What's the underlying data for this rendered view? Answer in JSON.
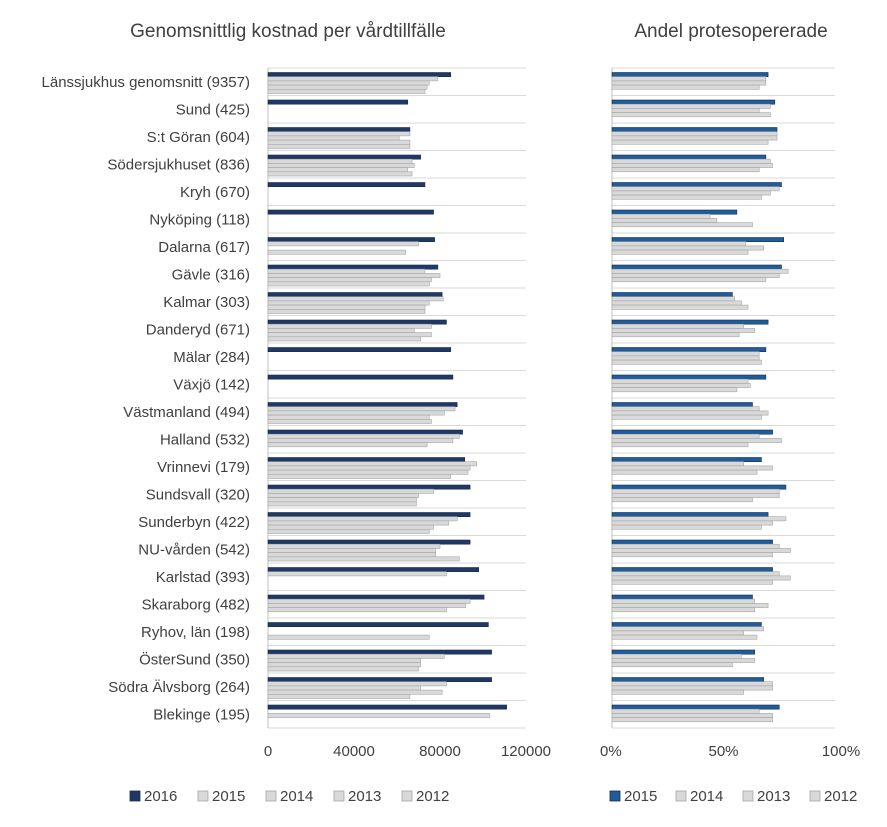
{
  "chart_data": [
    {
      "type": "bar",
      "orientation": "horizontal",
      "title": "Genomsnittlig kostnad per vårdtillfälle",
      "xlabel": "",
      "ylabel": "",
      "xlim": [
        0,
        120000
      ],
      "x_ticks": [
        0,
        40000,
        80000,
        120000
      ],
      "x_tick_labels": [
        "0",
        "40000",
        "80000",
        "120000"
      ],
      "grid": true,
      "legend_position": "bottom",
      "categories": [
        "Länssjukhus genomsnitt (9357)",
        "Sund (425)",
        "S:t Göran (604)",
        "Södersjukhuset (836)",
        "Kryh (670)",
        "Nyköping (118)",
        "Dalarna (617)",
        "Gävle (316)",
        "Kalmar (303)",
        "Danderyd (671)",
        "Mälar (284)",
        "Växjö (142)",
        "Västmanland (494)",
        "Halland (532)",
        "Vrinnevi (179)",
        "Sundsvall (320)",
        "Sunderbyn (422)",
        "NU-vården (542)",
        "Karlstad (393)",
        "Skaraborg (482)",
        "Ryhov, län (198)",
        "ÖsterSund (350)",
        "Södra Älvsborg (264)",
        "Blekinge (195)"
      ],
      "series": [
        {
          "name": "2016",
          "color": "#1f3864",
          "values": [
            85000,
            65000,
            66000,
            71000,
            73000,
            77000,
            77500,
            79000,
            81000,
            83000,
            85000,
            86000,
            88000,
            90500,
            91500,
            94000,
            94000,
            94000,
            98000,
            100500,
            102500,
            104000,
            104000,
            111000
          ]
        },
        {
          "name": "2015",
          "color": "#d9d9d9",
          "values": [
            79000,
            null,
            66000,
            67000,
            null,
            null,
            70000,
            73000,
            81500,
            76000,
            null,
            null,
            87000,
            89000,
            97000,
            77000,
            88000,
            80000,
            83000,
            94000,
            null,
            82000,
            83000,
            null
          ]
        },
        {
          "name": "2014",
          "color": "#d9d9d9",
          "values": [
            75000,
            null,
            61000,
            68000,
            null,
            null,
            null,
            80000,
            75000,
            68000,
            null,
            null,
            82000,
            86000,
            94000,
            70000,
            84000,
            78000,
            null,
            92000,
            null,
            71000,
            71000,
            103000
          ]
        },
        {
          "name": "2013",
          "color": "#d9d9d9",
          "values": [
            74000,
            null,
            66000,
            65000,
            null,
            null,
            64000,
            76000,
            73000,
            76000,
            null,
            null,
            75000,
            74000,
            93000,
            69000,
            77000,
            78000,
            null,
            83000,
            75000,
            71000,
            81000,
            null
          ]
        },
        {
          "name": "2012",
          "color": "#d9d9d9",
          "values": [
            73000,
            null,
            66000,
            67000,
            null,
            null,
            null,
            75000,
            73000,
            71000,
            null,
            null,
            76000,
            null,
            85000,
            69000,
            75000,
            89000,
            null,
            null,
            null,
            70000,
            66000,
            null
          ]
        }
      ]
    },
    {
      "type": "bar",
      "orientation": "horizontal",
      "title": "Andel protesopererade",
      "xlabel": "",
      "ylabel": "",
      "xlim": [
        0,
        100
      ],
      "x_ticks": [
        0,
        50,
        100
      ],
      "x_tick_labels": [
        "0%",
        "50%",
        "100%"
      ],
      "grid": true,
      "legend_position": "bottom",
      "categories": [
        "Länssjukhus genomsnitt (9357)",
        "Sund (425)",
        "S:t Göran (604)",
        "Södersjukhuset (836)",
        "Kryh (670)",
        "Nyköping (118)",
        "Dalarna (617)",
        "Gävle (316)",
        "Kalmar (303)",
        "Danderyd (671)",
        "Mälar (284)",
        "Växjö (142)",
        "Västmanland (494)",
        "Halland (532)",
        "Vrinnevi (179)",
        "Sundsvall (320)",
        "Sunderbyn (422)",
        "NU-vården (542)",
        "Karlstad (393)",
        "Skaraborg (482)",
        "Ryhov, län (198)",
        "ÖsterSund (350)",
        "Södra Älvsborg (264)",
        "Blekinge (195)"
      ],
      "series": [
        {
          "name": "2015",
          "color": "#1f5c99",
          "values": [
            70,
            73,
            74,
            69,
            76,
            56,
            77,
            76,
            54,
            70,
            69,
            69,
            63,
            72,
            67,
            78,
            70,
            72,
            72,
            63,
            67,
            64,
            68,
            75
          ]
        },
        {
          "name": "2014",
          "color": "#d9d9d9",
          "values": [
            69,
            71,
            74,
            71,
            75,
            44,
            60,
            79,
            55,
            59,
            66,
            61,
            66,
            66,
            59,
            75,
            78,
            75,
            75,
            64,
            68,
            58,
            72,
            66
          ]
        },
        {
          "name": "2013",
          "color": "#d9d9d9",
          "values": [
            69,
            66,
            74,
            72,
            71,
            47,
            68,
            75,
            58,
            64,
            66,
            62,
            70,
            76,
            72,
            75,
            72,
            80,
            80,
            70,
            59,
            64,
            72,
            72
          ]
        },
        {
          "name": "2012",
          "color": "#d9d9d9",
          "values": [
            66,
            71,
            70,
            66,
            67,
            63,
            61,
            69,
            61,
            57,
            67,
            56,
            67,
            61,
            65,
            63,
            67,
            72,
            72,
            64,
            65,
            54,
            59,
            72
          ]
        }
      ]
    }
  ]
}
